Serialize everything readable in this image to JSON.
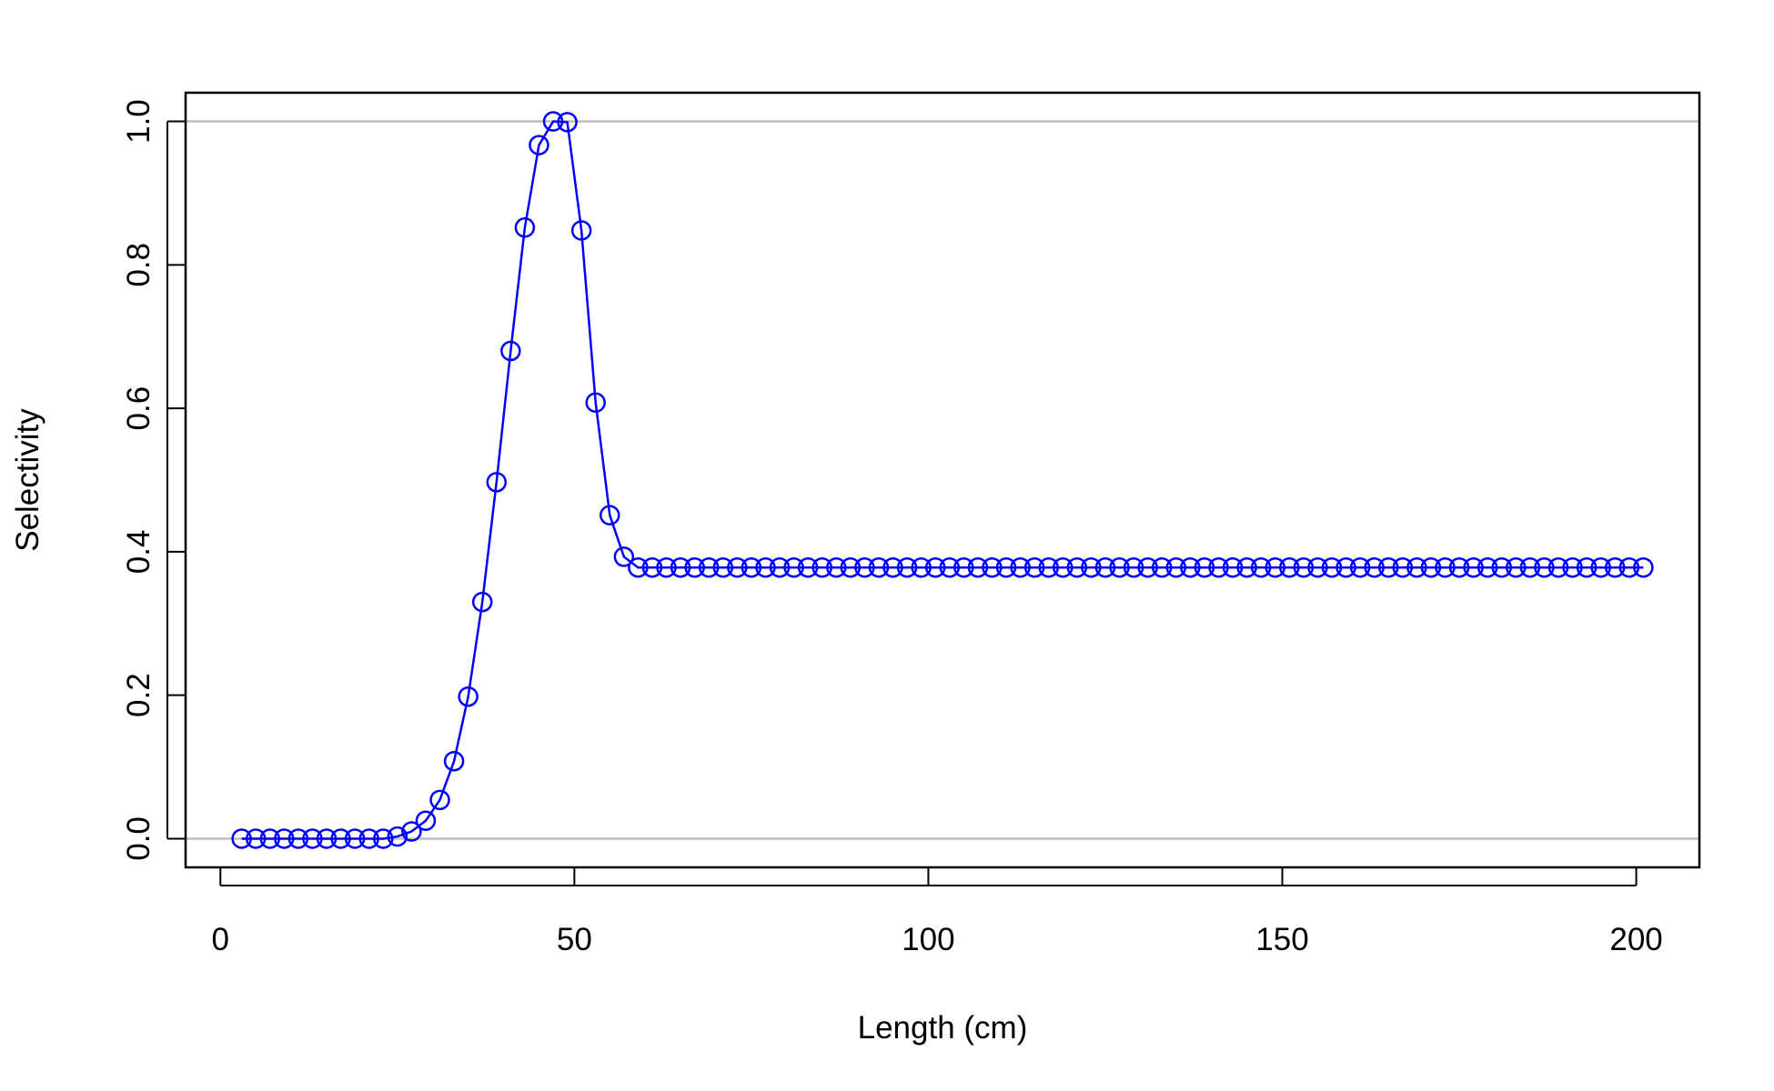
{
  "chart_data": {
    "type": "line",
    "xlabel": "Length (cm)",
    "ylabel": "Selectivity",
    "x": [
      3,
      5,
      7,
      9,
      11,
      13,
      15,
      17,
      19,
      21,
      23,
      25,
      27,
      29,
      31,
      33,
      35,
      37,
      39,
      41,
      43,
      45,
      47,
      49,
      51,
      53,
      55,
      57,
      59,
      61,
      63,
      65,
      67,
      69,
      71,
      73,
      75,
      77,
      79,
      81,
      83,
      85,
      87,
      89,
      91,
      93,
      95,
      97,
      99,
      101,
      103,
      105,
      107,
      109,
      111,
      113,
      115,
      117,
      119,
      121,
      123,
      125,
      127,
      129,
      131,
      133,
      135,
      137,
      139,
      141,
      143,
      145,
      147,
      149,
      151,
      153,
      155,
      157,
      159,
      161,
      163,
      165,
      167,
      169,
      171,
      173,
      175,
      177,
      179,
      181,
      183,
      185,
      187,
      189,
      191,
      193,
      195,
      197,
      199,
      201
    ],
    "series": [
      {
        "color": "#0000ff",
        "marker": "open-circle",
        "values": [
          0,
          0,
          0,
          0,
          0,
          0,
          0,
          0,
          0,
          0,
          0,
          0.003,
          0.01,
          0.025,
          0.054,
          0.108,
          0.198,
          0.33,
          0.497,
          0.68,
          0.852,
          0.967,
          1.0,
          0.999,
          0.848,
          0.608,
          0.451,
          0.393,
          0.378,
          0.378,
          0.378,
          0.378,
          0.378,
          0.378,
          0.378,
          0.378,
          0.378,
          0.378,
          0.378,
          0.378,
          0.378,
          0.378,
          0.378,
          0.378,
          0.378,
          0.378,
          0.378,
          0.378,
          0.378,
          0.378,
          0.378,
          0.378,
          0.378,
          0.378,
          0.378,
          0.378,
          0.378,
          0.378,
          0.378,
          0.378,
          0.378,
          0.378,
          0.378,
          0.378,
          0.378,
          0.378,
          0.378,
          0.378,
          0.378,
          0.378,
          0.378,
          0.378,
          0.378,
          0.378,
          0.378,
          0.378,
          0.378,
          0.378,
          0.378,
          0.378,
          0.378,
          0.378,
          0.378,
          0.378,
          0.378,
          0.378,
          0.378,
          0.378,
          0.378,
          0.378,
          0.378,
          0.378,
          0.378,
          0.378,
          0.378,
          0.378,
          0.378,
          0.378,
          0.378,
          0.378
        ]
      }
    ],
    "xlim": [
      -4.92,
      208.92
    ],
    "xticks": [
      0,
      50,
      100,
      150,
      200
    ],
    "ylim": [
      -0.04,
      1.04
    ],
    "yticks": [
      {
        "value": 0,
        "label": "0.0"
      },
      0.2,
      0.4,
      0.6,
      0.8,
      {
        "value": 1,
        "label": "1.0"
      }
    ],
    "reference_lines": [
      0,
      1
    ],
    "reference_color": "#bebebe"
  }
}
